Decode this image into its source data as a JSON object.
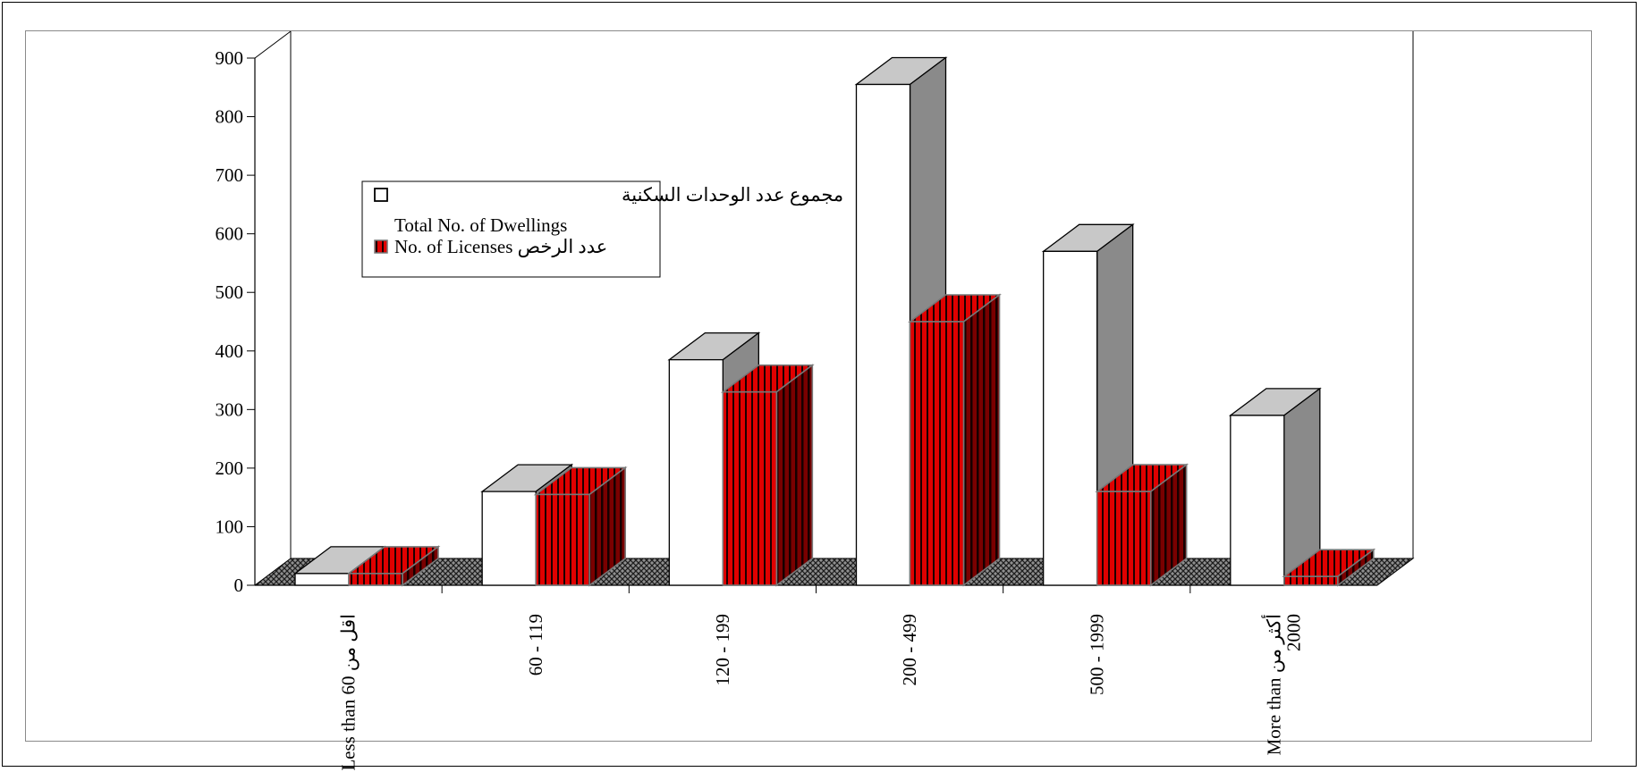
{
  "chart_data": {
    "type": "bar",
    "categories": [
      [
        "Less than 60 اقل من"
      ],
      [
        "60   -   119"
      ],
      [
        "120 - 199"
      ],
      [
        "200 - 499"
      ],
      [
        "500 - 1999"
      ],
      [
        "More than أكثر من",
        "2000"
      ]
    ],
    "series": [
      {
        "name": "مجموع عدد  الوحدات السكنية",
        "name2": "Total No. of  Dwellings",
        "values": [
          20,
          160,
          385,
          855,
          570,
          290
        ]
      },
      {
        "name": "No. of  Licenses عدد الرخص",
        "values": [
          20,
          155,
          330,
          450,
          160,
          15
        ]
      }
    ],
    "ylim": [
      0,
      900
    ],
    "yticks": [
      0,
      100,
      200,
      300,
      400,
      500,
      600,
      700,
      800,
      900
    ],
    "colors": {
      "dwellings": "#ffffff",
      "licenses": "#e00000"
    },
    "legend_position": "upper-left"
  }
}
